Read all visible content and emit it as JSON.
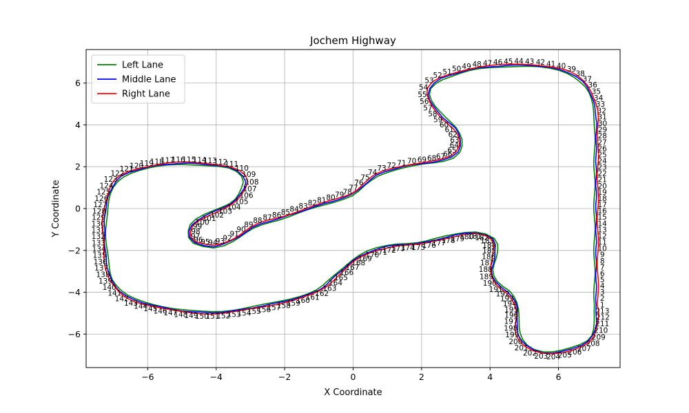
{
  "chart_data": {
    "type": "line",
    "title": "Jochem Highway",
    "xlabel": "X Coordinate",
    "ylabel": "Y Coordinate",
    "xlim": [
      -7.8,
      7.8
    ],
    "ylim": [
      -7.6,
      7.6
    ],
    "xticks": [
      -6,
      -4,
      -2,
      0,
      2,
      4,
      6
    ],
    "yticks": [
      -6,
      -4,
      -2,
      0,
      2,
      4,
      6
    ],
    "grid": true,
    "legend_position": "top-left",
    "point_labels": "1-213",
    "series": [
      {
        "name": "Left Lane",
        "color": "#008000",
        "offset": 0.05
      },
      {
        "name": "Middle Lane",
        "color": "#0000ff",
        "offset": 0.0
      },
      {
        "name": "Right Lane",
        "color": "#ff0000",
        "offset": -0.05
      }
    ],
    "centerline": [
      [
        7.1,
        -4.6
      ],
      [
        7.1,
        -3.0
      ],
      [
        7.1,
        -1.0
      ],
      [
        7.1,
        1.0
      ],
      [
        7.1,
        3.0
      ],
      [
        7.1,
        4.4
      ],
      [
        7.0,
        5.2
      ],
      [
        6.8,
        5.9
      ],
      [
        6.3,
        6.5
      ],
      [
        5.5,
        6.8
      ],
      [
        4.7,
        6.85
      ],
      [
        3.6,
        6.7
      ],
      [
        2.8,
        6.35
      ],
      [
        2.4,
        6.05
      ],
      [
        2.2,
        5.6
      ],
      [
        2.3,
        5.0
      ],
      [
        2.6,
        4.4
      ],
      [
        3.0,
        3.8
      ],
      [
        3.15,
        3.2
      ],
      [
        3.0,
        2.6
      ],
      [
        2.6,
        2.3
      ],
      [
        1.8,
        2.1
      ],
      [
        1.2,
        1.9
      ],
      [
        0.7,
        1.6
      ],
      [
        0.3,
        1.1
      ],
      [
        0.0,
        0.7
      ],
      [
        -0.5,
        0.4
      ],
      [
        -1.2,
        0.05
      ],
      [
        -2.0,
        -0.4
      ],
      [
        -2.8,
        -0.8
      ],
      [
        -3.5,
        -1.5
      ],
      [
        -4.0,
        -1.8
      ],
      [
        -4.4,
        -1.75
      ],
      [
        -4.75,
        -1.5
      ],
      [
        -4.75,
        -0.9
      ],
      [
        -4.5,
        -0.5
      ],
      [
        -4.0,
        -0.1
      ],
      [
        -3.5,
        0.3
      ],
      [
        -3.25,
        0.8
      ],
      [
        -3.15,
        1.4
      ],
      [
        -3.5,
        1.9
      ],
      [
        -4.2,
        2.1
      ],
      [
        -5.2,
        2.15
      ],
      [
        -6.2,
        1.9
      ],
      [
        -6.8,
        1.5
      ],
      [
        -7.1,
        0.8
      ],
      [
        -7.25,
        -0.3
      ],
      [
        -7.25,
        -1.8
      ],
      [
        -7.15,
        -3.0
      ],
      [
        -6.95,
        -3.7
      ],
      [
        -6.5,
        -4.3
      ],
      [
        -5.5,
        -4.75
      ],
      [
        -4.6,
        -4.95
      ],
      [
        -3.8,
        -4.95
      ],
      [
        -2.8,
        -4.7
      ],
      [
        -1.8,
        -4.35
      ],
      [
        -1.0,
        -3.9
      ],
      [
        -0.5,
        -3.2
      ],
      [
        0.0,
        -2.5
      ],
      [
        0.5,
        -2.05
      ],
      [
        1.2,
        -1.75
      ],
      [
        2.0,
        -1.65
      ],
      [
        2.9,
        -1.3
      ],
      [
        3.6,
        -1.15
      ],
      [
        4.1,
        -1.5
      ],
      [
        4.15,
        -2.2
      ],
      [
        4.05,
        -3.0
      ],
      [
        4.2,
        -3.6
      ],
      [
        4.6,
        -4.1
      ],
      [
        4.8,
        -4.8
      ],
      [
        4.8,
        -5.9
      ],
      [
        5.1,
        -6.6
      ],
      [
        5.6,
        -6.9
      ],
      [
        6.2,
        -6.8
      ],
      [
        6.9,
        -6.3
      ],
      [
        7.1,
        -5.5
      ]
    ]
  }
}
